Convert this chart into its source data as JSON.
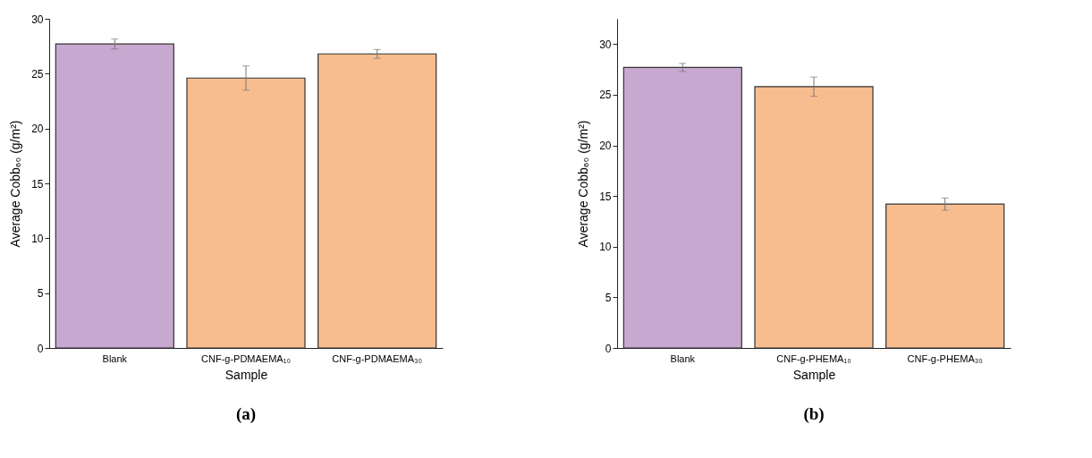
{
  "chart_data": [
    {
      "type": "bar",
      "title": "(a)",
      "xlabel": "Sample",
      "ylabel": "Average Cobb₆₀ (g/m²)",
      "categories": [
        "Blank",
        "CNF-g-PDMAEMA₁₀",
        "CNF-g-PDMAEMA₃₀"
      ],
      "values": [
        27.7,
        24.6,
        26.8
      ],
      "errors": [
        0.45,
        1.1,
        0.4
      ],
      "colors": [
        "#c8a8d0",
        "#f8bd8f",
        "#f8bd8f"
      ],
      "ylim": [
        0,
        30
      ],
      "yticks": [
        0,
        5,
        10,
        15,
        20,
        25,
        30
      ],
      "grid": false
    },
    {
      "type": "bar",
      "title": "(b)",
      "xlabel": "Sample",
      "ylabel": "Average Cobb₆₀ (g/m²)",
      "categories": [
        "Blank",
        "CNF-g-PHEMA₁₀",
        "CNF-g-PHEMA₃₀"
      ],
      "values": [
        27.7,
        25.8,
        14.2
      ],
      "errors": [
        0.4,
        0.95,
        0.6
      ],
      "colors": [
        "#c8a8d0",
        "#f8bd8f",
        "#f8bd8f"
      ],
      "ylim": [
        0,
        32.5
      ],
      "yticks": [
        0,
        5,
        10,
        15,
        20,
        25,
        30
      ],
      "grid": false
    }
  ]
}
